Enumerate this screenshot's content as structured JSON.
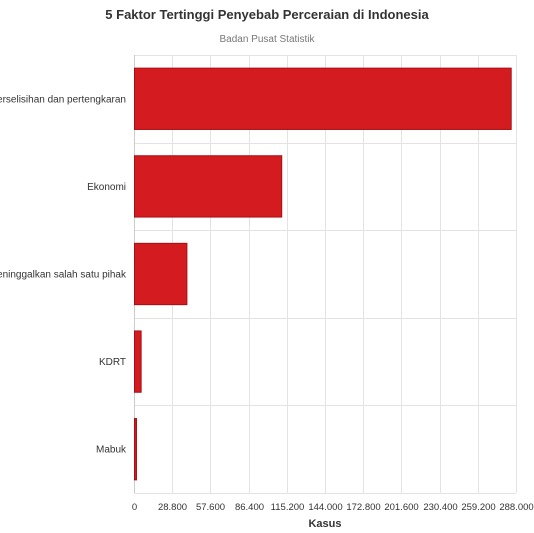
{
  "chart_data": {
    "type": "bar",
    "orientation": "horizontal",
    "title": "5 Faktor Tertinggi Penyebab Perceraian di Indonesia",
    "subtitle": "Badan Pusat Statistik",
    "xlabel": "Kasus",
    "ylabel": "",
    "categories": [
      "Perselisihan dan pertengkaran",
      "Ekonomi",
      "Meninggalkan salah satu pihak",
      "KDRT",
      "Mabuk"
    ],
    "values": [
      284000,
      111000,
      39500,
      5000,
      1500
    ],
    "xlim": [
      0,
      288000
    ],
    "xticks": [
      0,
      28800,
      57600,
      86400,
      115200,
      144000,
      172800,
      201600,
      230400,
      259200,
      288000
    ],
    "xtick_labels": [
      "0",
      "28.800",
      "57.600",
      "86.400",
      "115.200",
      "144.000",
      "172.800",
      "201.600",
      "230.400",
      "259.200",
      "288.000"
    ],
    "bar_color": "#d41b1f",
    "grid": true,
    "legend": "none"
  }
}
